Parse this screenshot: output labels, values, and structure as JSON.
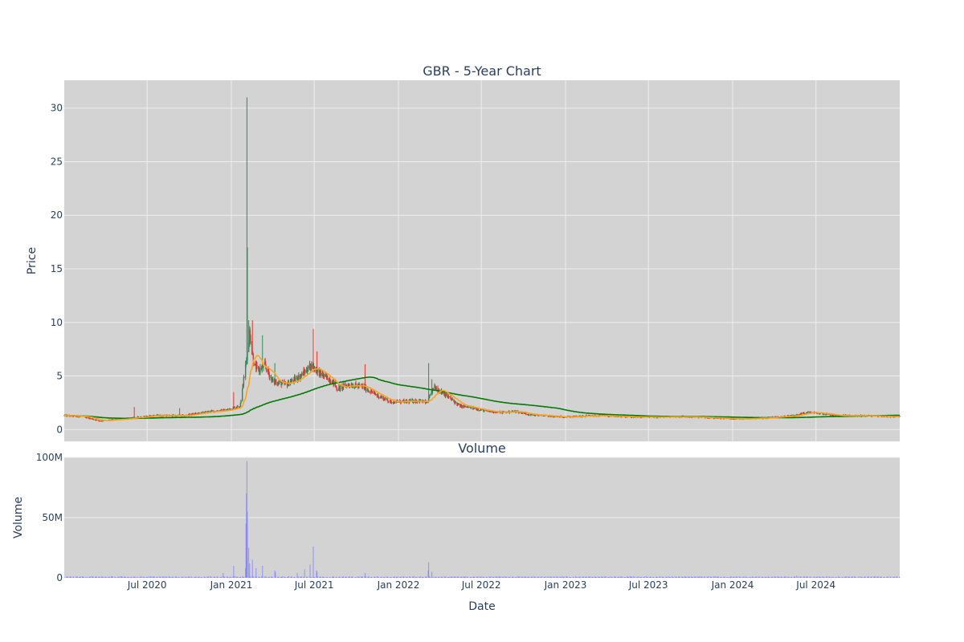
{
  "chart_data": [
    {
      "type": "candlestick",
      "title": "GBR - 5-Year Chart",
      "ylabel": "Price",
      "xlabel": "",
      "x_range": [
        "2020-01-02",
        "2024-12-31"
      ],
      "ylim": [
        -1.1,
        32.6
      ],
      "grid": true,
      "yticks": [
        0,
        5,
        10,
        15,
        20,
        25,
        30
      ],
      "ytick_labels": [
        "0",
        "5",
        "10",
        "15",
        "20",
        "25",
        "30"
      ],
      "x_gridlines": [
        "2020-07-01",
        "2021-01-01",
        "2021-07-01",
        "2022-01-01",
        "2022-07-01",
        "2023-01-01",
        "2023-07-01",
        "2024-01-01",
        "2024-07-01"
      ],
      "colors": {
        "increasing": "#2e8b57",
        "decreasing": "#e8362a",
        "short_ma": "#ffa31a",
        "long_ma": "#007a00",
        "plot_bg": "#d3d3d3",
        "grid": "#eeeeee"
      },
      "close_anchors": [
        [
          "2020-01-02",
          1.3
        ],
        [
          "2020-02-15",
          1.2
        ],
        [
          "2020-03-20",
          0.8
        ],
        [
          "2020-04-15",
          0.9
        ],
        [
          "2020-05-15",
          1.0
        ],
        [
          "2020-06-20",
          1.2
        ],
        [
          "2020-07-20",
          1.3
        ],
        [
          "2020-08-20",
          1.3
        ],
        [
          "2020-09-20",
          1.3
        ],
        [
          "2020-10-20",
          1.5
        ],
        [
          "2020-11-20",
          1.7
        ],
        [
          "2020-12-20",
          1.8
        ],
        [
          "2021-01-20",
          2.2
        ],
        [
          "2021-02-03",
          6.5
        ],
        [
          "2021-02-10",
          9.0
        ],
        [
          "2021-02-20",
          6.0
        ],
        [
          "2021-03-01",
          5.5
        ],
        [
          "2021-03-15",
          6.0
        ],
        [
          "2021-04-01",
          4.5
        ],
        [
          "2021-05-01",
          4.2
        ],
        [
          "2021-06-01",
          5.0
        ],
        [
          "2021-06-25",
          6.0
        ],
        [
          "2021-07-15",
          5.2
        ],
        [
          "2021-08-10",
          4.5
        ],
        [
          "2021-08-20",
          3.8
        ],
        [
          "2021-09-15",
          4.2
        ],
        [
          "2021-10-15",
          4.0
        ],
        [
          "2021-11-15",
          3.2
        ],
        [
          "2021-12-15",
          2.6
        ],
        [
          "2022-01-15",
          2.6
        ],
        [
          "2022-02-15",
          2.7
        ],
        [
          "2022-03-05",
          2.5
        ],
        [
          "2022-03-20",
          4.0
        ],
        [
          "2022-04-15",
          3.2
        ],
        [
          "2022-05-15",
          2.2
        ],
        [
          "2022-06-15",
          2.0
        ],
        [
          "2022-07-15",
          1.7
        ],
        [
          "2022-08-15",
          1.6
        ],
        [
          "2022-09-15",
          1.7
        ],
        [
          "2022-10-15",
          1.4
        ],
        [
          "2022-11-15",
          1.3
        ],
        [
          "2022-12-15",
          1.2
        ],
        [
          "2023-01-15",
          1.2
        ],
        [
          "2023-03-15",
          1.3
        ],
        [
          "2023-05-15",
          1.2
        ],
        [
          "2023-07-15",
          1.15
        ],
        [
          "2023-09-15",
          1.2
        ],
        [
          "2023-11-15",
          1.1
        ],
        [
          "2024-01-15",
          1.0
        ],
        [
          "2024-03-15",
          1.1
        ],
        [
          "2024-05-15",
          1.3
        ],
        [
          "2024-06-15",
          1.6
        ],
        [
          "2024-07-15",
          1.5
        ],
        [
          "2024-08-15",
          1.3
        ],
        [
          "2024-10-15",
          1.3
        ],
        [
          "2024-12-31",
          1.2
        ]
      ],
      "notable_highs": [
        [
          "2021-01-06",
          3.5
        ],
        [
          "2021-02-04",
          31.0
        ],
        [
          "2021-02-05",
          17.0
        ],
        [
          "2021-02-08",
          10.2
        ],
        [
          "2021-02-16",
          10.2
        ],
        [
          "2021-03-10",
          8.8
        ],
        [
          "2021-04-06",
          6.2
        ],
        [
          "2021-06-22",
          6.1
        ],
        [
          "2021-06-29",
          9.4
        ],
        [
          "2021-07-07",
          7.3
        ],
        [
          "2021-10-20",
          6.1
        ],
        [
          "2022-03-08",
          6.2
        ],
        [
          "2022-03-15",
          4.7
        ],
        [
          "2020-06-03",
          2.1
        ],
        [
          "2020-09-10",
          2.0
        ]
      ],
      "series": [
        {
          "name": "",
          "type": "ma_short",
          "window_trading_days": 20
        },
        {
          "name": "",
          "type": "ma_long",
          "window_trading_days": 200
        }
      ]
    },
    {
      "type": "bar",
      "title": "Volume",
      "ylabel": "Volume",
      "xlabel": "Date",
      "ylim": [
        0,
        100000000
      ],
      "yticks": [
        0,
        50000000,
        100000000
      ],
      "ytick_labels": [
        "0",
        "50M",
        "100M"
      ],
      "xtick_labels": [
        "Jul 2020",
        "Jan 2021",
        "Jul 2021",
        "Jan 2022",
        "Jul 2022",
        "Jan 2023",
        "Jul 2023",
        "Jan 2024",
        "Jul 2024"
      ],
      "xticks": [
        "2020-07-01",
        "2021-01-01",
        "2021-07-01",
        "2022-01-01",
        "2022-07-01",
        "2023-01-01",
        "2023-07-01",
        "2024-01-01",
        "2024-07-01"
      ],
      "colors": {
        "bars": "#7b7bff",
        "plot_bg": "#d3d3d3",
        "grid": "#eeeeee"
      },
      "baseline_volume": 700000,
      "volume_spikes": [
        [
          "2020-12-14",
          4000000
        ],
        [
          "2021-01-06",
          10000000
        ],
        [
          "2021-02-01",
          8000000
        ],
        [
          "2021-02-02",
          45000000
        ],
        [
          "2021-02-03",
          70000000
        ],
        [
          "2021-02-04",
          97000000
        ],
        [
          "2021-02-05",
          55000000
        ],
        [
          "2021-02-08",
          25000000
        ],
        [
          "2021-02-10",
          12000000
        ],
        [
          "2021-02-16",
          15000000
        ],
        [
          "2021-02-24",
          8000000
        ],
        [
          "2021-03-10",
          10000000
        ],
        [
          "2021-04-06",
          6000000
        ],
        [
          "2021-04-07",
          5000000
        ],
        [
          "2021-05-25",
          4000000
        ],
        [
          "2021-06-10",
          7000000
        ],
        [
          "2021-06-22",
          11000000
        ],
        [
          "2021-06-29",
          26000000
        ],
        [
          "2021-07-06",
          6000000
        ],
        [
          "2021-07-07",
          5000000
        ],
        [
          "2021-10-20",
          4000000
        ],
        [
          "2022-03-07",
          6000000
        ],
        [
          "2022-03-08",
          13000000
        ],
        [
          "2022-03-15",
          5000000
        ],
        [
          "2022-10-15",
          2000000
        ],
        [
          "2024-05-20",
          1800000
        ]
      ]
    }
  ]
}
